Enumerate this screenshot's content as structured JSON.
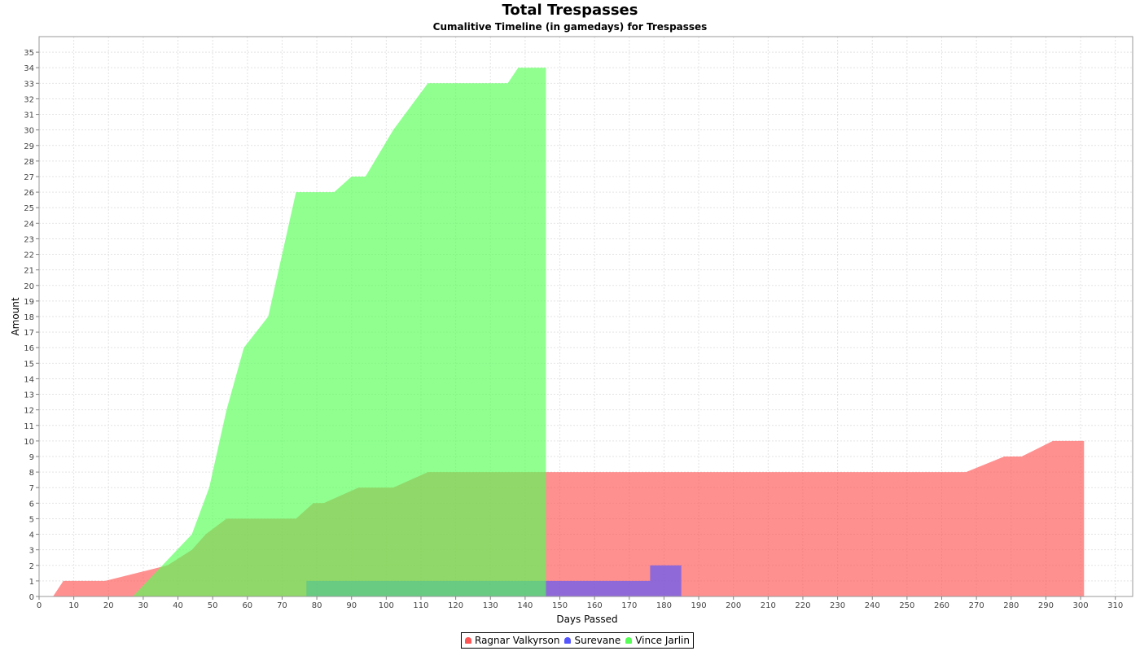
{
  "chart_data": {
    "type": "area",
    "title": "Total Trespasses",
    "subtitle": "Cumalitive Timeline (in gamedays) for Trespasses",
    "xlabel": "Days Passed",
    "ylabel": "Amount",
    "xlim": [
      0,
      315
    ],
    "ylim": [
      0,
      36
    ],
    "x_ticks": [
      0,
      10,
      20,
      30,
      40,
      50,
      60,
      70,
      80,
      90,
      100,
      110,
      120,
      130,
      140,
      150,
      160,
      170,
      180,
      190,
      200,
      210,
      220,
      230,
      240,
      250,
      260,
      270,
      280,
      290,
      300,
      310
    ],
    "y_ticks": [
      0,
      1,
      2,
      3,
      4,
      5,
      6,
      7,
      8,
      9,
      10,
      11,
      12,
      13,
      14,
      15,
      16,
      17,
      18,
      19,
      20,
      21,
      22,
      23,
      24,
      25,
      26,
      27,
      28,
      29,
      30,
      31,
      32,
      33,
      34,
      35
    ],
    "grid": true,
    "legend_position": "bottom",
    "series": [
      {
        "name": "Ragnar Valkyrson",
        "color": "#ff5555",
        "points": [
          [
            4,
            0
          ],
          [
            7,
            1
          ],
          [
            19,
            1
          ],
          [
            37,
            2
          ],
          [
            44,
            3
          ],
          [
            48,
            4
          ],
          [
            54,
            5
          ],
          [
            74,
            5
          ],
          [
            79,
            6
          ],
          [
            82,
            6
          ],
          [
            92,
            7
          ],
          [
            102,
            7
          ],
          [
            112,
            8
          ],
          [
            267,
            8
          ],
          [
            278,
            9
          ],
          [
            283,
            9
          ],
          [
            292,
            10
          ],
          [
            301,
            10
          ],
          [
            301,
            0
          ]
        ]
      },
      {
        "name": "Surevane",
        "color": "#5555ff",
        "points": [
          [
            77,
            0
          ],
          [
            77,
            1
          ],
          [
            176,
            1
          ],
          [
            176,
            2
          ],
          [
            185,
            2
          ],
          [
            185,
            0
          ]
        ]
      },
      {
        "name": "Vince Jarlin",
        "color": "#55ff55",
        "points": [
          [
            27,
            0
          ],
          [
            44,
            4
          ],
          [
            49,
            7
          ],
          [
            54,
            12
          ],
          [
            59,
            16
          ],
          [
            66,
            18
          ],
          [
            74,
            26
          ],
          [
            85,
            26
          ],
          [
            90,
            27
          ],
          [
            94,
            27
          ],
          [
            102,
            30
          ],
          [
            112,
            33
          ],
          [
            135,
            33
          ],
          [
            138,
            34
          ],
          [
            146,
            34
          ],
          [
            146,
            0
          ]
        ]
      }
    ]
  }
}
